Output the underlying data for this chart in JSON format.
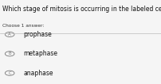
{
  "title": "Which stage of mitosis is occurring in the labeled cell",
  "subtitle": "Choose 1 answer:",
  "options": [
    "prophase",
    "metaphase",
    "anaphase"
  ],
  "option_labels": [
    "A",
    "B",
    "C"
  ],
  "bg_color": "#f5f5f5",
  "title_fontsize": 5.5,
  "subtitle_fontsize": 4.2,
  "option_fontsize": 5.5,
  "text_color": "#111111",
  "subtitle_color": "#333333",
  "circle_edge_color": "#777777",
  "circle_fill_color": "#f5f5f5",
  "divider_color": "#bbbbbb",
  "option_label_fontsize": 3.8
}
